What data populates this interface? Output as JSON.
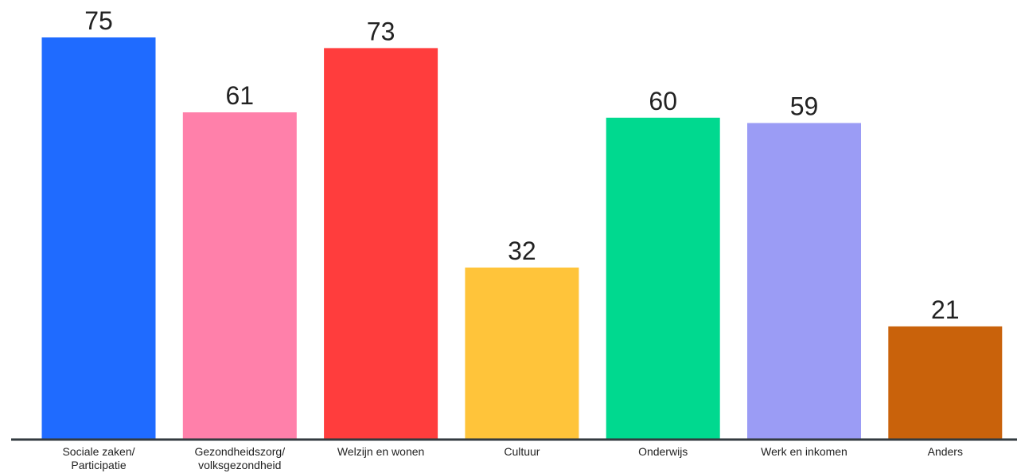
{
  "chart_data": {
    "type": "bar",
    "categories": [
      [
        "Sociale zaken/",
        "Participatie"
      ],
      [
        "Gezondheidszorg/",
        "volksgezondheid"
      ],
      [
        "Welzijn en wonen"
      ],
      [
        "Cultuur"
      ],
      [
        "Onderwijs"
      ],
      [
        "Werk en inkomen"
      ],
      [
        "Anders"
      ]
    ],
    "values": [
      75,
      61,
      73,
      32,
      60,
      59,
      21
    ],
    "colors": [
      "#1f6bff",
      "#ff80aa",
      "#ff3d3d",
      "#ffc43a",
      "#00d98f",
      "#9b9cf5",
      "#c9620b"
    ],
    "title": "",
    "xlabel": "",
    "ylabel": "",
    "ylim": [
      0,
      75
    ],
    "grid": false,
    "legend": "none",
    "axis_color": "#333b40"
  }
}
